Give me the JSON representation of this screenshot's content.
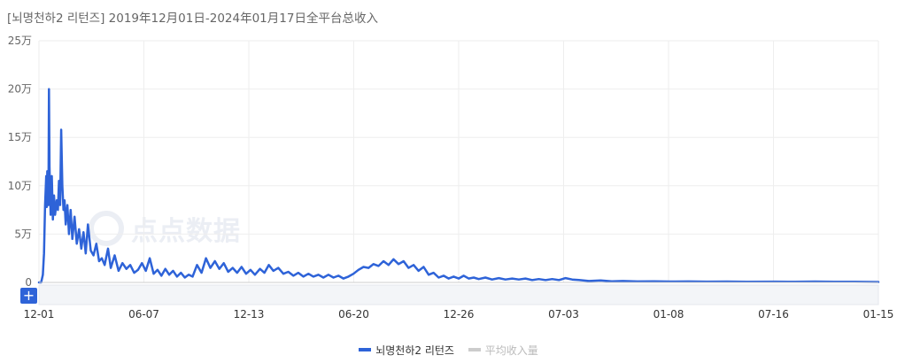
{
  "header": {
    "title": "[뇌명천하2 리턴즈]  2019年12月01日-2024年01月17日全平台总收入"
  },
  "watermark": {
    "text": "点点数据"
  },
  "zoom": {
    "add_label": "+"
  },
  "legend": [
    {
      "label": "뇌명천하2 리턴즈",
      "color": "#2e63d8",
      "active": true
    },
    {
      "label": "平均收入量",
      "color": "#cccccc",
      "active": false
    }
  ],
  "chart_data": {
    "type": "line",
    "title": "[뇌명천하2 리턴즈]  2019年12月01日-2024年01月17日全平台总收入",
    "xlabel": "",
    "ylabel": "",
    "x_range": [
      "2019-12-01",
      "2024-01-17"
    ],
    "x_ticks": [
      "12-01",
      "06-07",
      "12-13",
      "06-20",
      "12-26",
      "07-03",
      "01-08",
      "07-16",
      "01-15"
    ],
    "y_ticks": [
      "0",
      "5万",
      "10万",
      "15万",
      "20万",
      "25万"
    ],
    "ylim": [
      0,
      250000
    ],
    "grid": true,
    "legend_position": "bottom",
    "series": [
      {
        "name": "뇌명천하2 리턴즈",
        "color": "#2e63d8",
        "points": [
          [
            "2019-12-01",
            0
          ],
          [
            "2019-12-05",
            0
          ],
          [
            "2019-12-08",
            8000
          ],
          [
            "2019-12-10",
            30000
          ],
          [
            "2019-12-12",
            80000
          ],
          [
            "2019-12-14",
            110000
          ],
          [
            "2019-12-15",
            78000
          ],
          [
            "2019-12-16",
            115000
          ],
          [
            "2019-12-18",
            80000
          ],
          [
            "2019-12-19",
            200000
          ],
          [
            "2019-12-20",
            120000
          ],
          [
            "2019-12-22",
            70000
          ],
          [
            "2019-12-24",
            110000
          ],
          [
            "2019-12-26",
            65000
          ],
          [
            "2019-12-28",
            90000
          ],
          [
            "2019-12-30",
            70000
          ],
          [
            "2020-01-02",
            85000
          ],
          [
            "2020-01-04",
            75000
          ],
          [
            "2020-01-06",
            105000
          ],
          [
            "2020-01-08",
            80000
          ],
          [
            "2020-01-10",
            158000
          ],
          [
            "2020-01-12",
            100000
          ],
          [
            "2020-01-14",
            75000
          ],
          [
            "2020-01-16",
            85000
          ],
          [
            "2020-01-18",
            60000
          ],
          [
            "2020-01-21",
            80000
          ],
          [
            "2020-01-24",
            50000
          ],
          [
            "2020-01-27",
            75000
          ],
          [
            "2020-01-30",
            45000
          ],
          [
            "2020-02-03",
            68000
          ],
          [
            "2020-02-07",
            40000
          ],
          [
            "2020-02-11",
            55000
          ],
          [
            "2020-02-15",
            35000
          ],
          [
            "2020-02-19",
            52000
          ],
          [
            "2020-02-23",
            30000
          ],
          [
            "2020-02-27",
            60000
          ],
          [
            "2020-03-03",
            33000
          ],
          [
            "2020-03-08",
            28000
          ],
          [
            "2020-03-13",
            40000
          ],
          [
            "2020-03-18",
            22000
          ],
          [
            "2020-03-23",
            25000
          ],
          [
            "2020-03-28",
            18000
          ],
          [
            "2020-04-03",
            35000
          ],
          [
            "2020-04-08",
            15000
          ],
          [
            "2020-04-15",
            28000
          ],
          [
            "2020-04-22",
            12000
          ],
          [
            "2020-04-29",
            20000
          ],
          [
            "2020-05-06",
            14000
          ],
          [
            "2020-05-13",
            18000
          ],
          [
            "2020-05-20",
            10000
          ],
          [
            "2020-05-27",
            13000
          ],
          [
            "2020-06-03",
            20000
          ],
          [
            "2020-06-10",
            12000
          ],
          [
            "2020-06-17",
            25000
          ],
          [
            "2020-06-24",
            9000
          ],
          [
            "2020-07-01",
            13000
          ],
          [
            "2020-07-08",
            7000
          ],
          [
            "2020-07-15",
            14000
          ],
          [
            "2020-07-22",
            8000
          ],
          [
            "2020-07-29",
            12000
          ],
          [
            "2020-08-05",
            6000
          ],
          [
            "2020-08-12",
            10000
          ],
          [
            "2020-08-19",
            5000
          ],
          [
            "2020-08-26",
            8000
          ],
          [
            "2020-09-02",
            6000
          ],
          [
            "2020-09-10",
            18000
          ],
          [
            "2020-09-18",
            10000
          ],
          [
            "2020-09-26",
            25000
          ],
          [
            "2020-10-04",
            15000
          ],
          [
            "2020-10-12",
            22000
          ],
          [
            "2020-10-20",
            14000
          ],
          [
            "2020-10-28",
            20000
          ],
          [
            "2020-11-05",
            11000
          ],
          [
            "2020-11-13",
            15000
          ],
          [
            "2020-11-21",
            10000
          ],
          [
            "2020-11-29",
            16000
          ],
          [
            "2020-12-07",
            9000
          ],
          [
            "2020-12-15",
            13000
          ],
          [
            "2020-12-23",
            8000
          ],
          [
            "2021-01-01",
            14000
          ],
          [
            "2021-01-09",
            10000
          ],
          [
            "2021-01-17",
            18000
          ],
          [
            "2021-01-25",
            12000
          ],
          [
            "2021-02-03",
            15000
          ],
          [
            "2021-02-12",
            9000
          ],
          [
            "2021-02-21",
            11000
          ],
          [
            "2021-03-02",
            7000
          ],
          [
            "2021-03-11",
            10000
          ],
          [
            "2021-03-20",
            6000
          ],
          [
            "2021-03-29",
            9000
          ],
          [
            "2021-04-07",
            6000
          ],
          [
            "2021-04-16",
            8000
          ],
          [
            "2021-04-25",
            5000
          ],
          [
            "2021-05-04",
            8000
          ],
          [
            "2021-05-13",
            5000
          ],
          [
            "2021-05-22",
            7000
          ],
          [
            "2021-05-31",
            4000
          ],
          [
            "2021-06-09",
            6000
          ],
          [
            "2021-06-18",
            9000
          ],
          [
            "2021-06-27",
            13000
          ],
          [
            "2021-07-06",
            16000
          ],
          [
            "2021-07-15",
            15000
          ],
          [
            "2021-07-24",
            19000
          ],
          [
            "2021-08-02",
            17000
          ],
          [
            "2021-08-11",
            22000
          ],
          [
            "2021-08-20",
            18000
          ],
          [
            "2021-08-29",
            24000
          ],
          [
            "2021-09-07",
            19000
          ],
          [
            "2021-09-16",
            22000
          ],
          [
            "2021-09-25",
            15000
          ],
          [
            "2021-10-04",
            18000
          ],
          [
            "2021-10-13",
            12000
          ],
          [
            "2021-10-22",
            16000
          ],
          [
            "2021-10-31",
            8000
          ],
          [
            "2021-11-09",
            10000
          ],
          [
            "2021-11-18",
            5000
          ],
          [
            "2021-11-27",
            7000
          ],
          [
            "2021-12-06",
            4000
          ],
          [
            "2021-12-15",
            6000
          ],
          [
            "2021-12-24",
            4000
          ],
          [
            "2022-01-02",
            7000
          ],
          [
            "2022-01-11",
            4000
          ],
          [
            "2022-01-20",
            5000
          ],
          [
            "2022-01-29",
            3500
          ],
          [
            "2022-02-10",
            5000
          ],
          [
            "2022-02-22",
            3000
          ],
          [
            "2022-03-06",
            4500
          ],
          [
            "2022-03-18",
            3000
          ],
          [
            "2022-03-30",
            4000
          ],
          [
            "2022-04-11",
            3000
          ],
          [
            "2022-04-23",
            4000
          ],
          [
            "2022-05-05",
            2500
          ],
          [
            "2022-05-17",
            3500
          ],
          [
            "2022-05-29",
            2500
          ],
          [
            "2022-06-10",
            3500
          ],
          [
            "2022-06-22",
            2500
          ],
          [
            "2022-07-04",
            4500
          ],
          [
            "2022-07-16",
            3000
          ],
          [
            "2022-07-28",
            2500
          ],
          [
            "2022-08-15",
            1500
          ],
          [
            "2022-09-05",
            2000
          ],
          [
            "2022-09-25",
            1200
          ],
          [
            "2022-10-15",
            1500
          ],
          [
            "2022-11-10",
            1000
          ],
          [
            "2022-12-10",
            1200
          ],
          [
            "2023-01-08",
            900
          ],
          [
            "2023-02-10",
            1000
          ],
          [
            "2023-03-15",
            800
          ],
          [
            "2023-04-20",
            900
          ],
          [
            "2023-05-25",
            700
          ],
          [
            "2023-07-16",
            800
          ],
          [
            "2023-08-20",
            600
          ],
          [
            "2023-09-25",
            900
          ],
          [
            "2023-10-30",
            600
          ],
          [
            "2023-12-05",
            700
          ],
          [
            "2024-01-17",
            500
          ]
        ]
      }
    ]
  }
}
